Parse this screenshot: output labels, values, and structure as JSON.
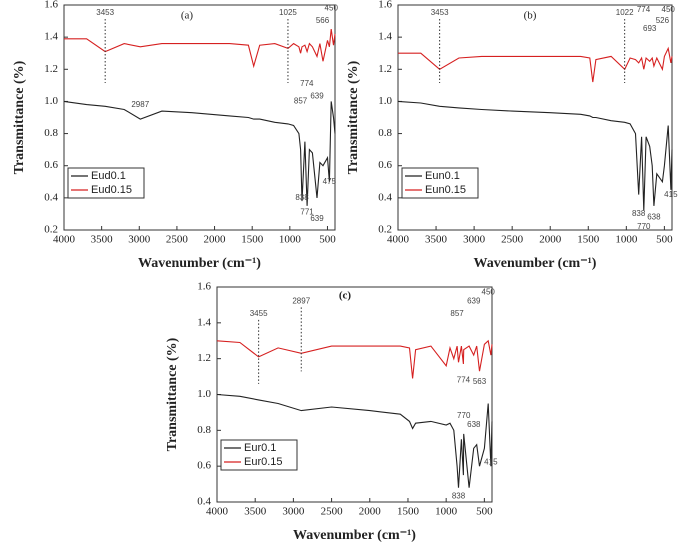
{
  "chart_data": [
    {
      "type": "line",
      "title": "(a)",
      "xlabel": "Wavenumber (cm⁻¹)",
      "ylabel": "Transmittance (%)",
      "xlim": [
        4000,
        400
      ],
      "xticks": [
        4000,
        3500,
        3000,
        2500,
        2000,
        1500,
        1000,
        500
      ],
      "ylim": [
        0.2,
        1.6
      ],
      "yticks": [
        0.2,
        0.4,
        0.6,
        0.8,
        {
          "value": 1.0,
          "label": "1.0"
        },
        1.2,
        1.4,
        1.6
      ],
      "legend": "lower left",
      "x": [
        4000,
        3700,
        3453,
        3200,
        2987,
        2700,
        2300,
        1800,
        1550,
        1480,
        1400,
        1200,
        1025,
        950,
        880,
        857,
        838,
        800,
        771,
        740,
        700,
        639,
        600,
        560,
        500,
        475,
        450,
        420,
        400
      ],
      "series": [
        {
          "name": "Eud0.1",
          "color": "#222222",
          "values": [
            1.0,
            0.98,
            0.97,
            0.95,
            0.89,
            0.94,
            0.93,
            0.91,
            0.9,
            0.89,
            0.89,
            0.87,
            0.86,
            0.85,
            0.8,
            0.7,
            0.38,
            0.75,
            0.35,
            0.7,
            0.68,
            0.4,
            0.62,
            0.6,
            0.65,
            0.5,
            1.0,
            0.9,
            0.8
          ]
        },
        {
          "name": "Eud0.15",
          "color": "#d62020",
          "values": [
            1.39,
            1.39,
            1.31,
            1.36,
            1.34,
            1.36,
            1.36,
            1.36,
            1.35,
            1.22,
            1.35,
            1.36,
            1.33,
            1.36,
            1.34,
            1.3,
            1.34,
            1.35,
            1.31,
            1.36,
            1.34,
            1.28,
            1.36,
            1.25,
            1.38,
            1.34,
            1.45,
            1.35,
            1.42
          ]
        }
      ],
      "annotations": [
        {
          "label": "3453",
          "x": 3453,
          "y": 1.55,
          "dotted": true
        },
        {
          "label": "2987",
          "x": 2987,
          "y": 0.98,
          "dotted": false
        },
        {
          "label": "1025",
          "x": 1025,
          "y": 1.55,
          "dotted": true
        },
        {
          "label": "857",
          "x": 857,
          "y": 1.0,
          "dotted": false
        },
        {
          "label": "774",
          "x": 774,
          "y": 1.11,
          "dotted": false
        },
        {
          "label": "639",
          "x": 639,
          "y": 1.03,
          "dotted": false
        },
        {
          "label": "566",
          "x": 566,
          "y": 1.5,
          "dotted": false
        },
        {
          "label": "450",
          "x": 450,
          "y": 1.58,
          "dotted": false
        },
        {
          "label": "838",
          "x": 838,
          "y": 0.4,
          "dotted": false
        },
        {
          "label": "771",
          "x": 771,
          "y": 0.31,
          "dotted": false
        },
        {
          "label": "639",
          "x": 639,
          "y": 0.27,
          "dotted": false
        },
        {
          "label": "475",
          "x": 475,
          "y": 0.5,
          "dotted": false
        }
      ]
    },
    {
      "type": "line",
      "title": "(b)",
      "xlabel": "Wavenumber (cm⁻¹)",
      "ylabel": "Transmittance (%)",
      "xlim": [
        4000,
        400
      ],
      "xticks": [
        4000,
        3500,
        3000,
        2500,
        2000,
        1500,
        1000,
        500
      ],
      "ylim": [
        0.2,
        1.6
      ],
      "yticks": [
        0.2,
        0.4,
        0.6,
        0.8,
        {
          "value": 1.0,
          "label": "1.0"
        },
        1.2,
        1.4,
        1.6
      ],
      "legend": "lower left",
      "x": [
        4000,
        3700,
        3453,
        3200,
        2900,
        2500,
        2000,
        1600,
        1480,
        1440,
        1400,
        1200,
        1022,
        950,
        880,
        838,
        800,
        770,
        740,
        693,
        660,
        638,
        600,
        526,
        500,
        450,
        415,
        400
      ],
      "series": [
        {
          "name": "Eun0.1",
          "color": "#222222",
          "values": [
            1.0,
            0.99,
            0.97,
            0.96,
            0.95,
            0.94,
            0.93,
            0.92,
            0.91,
            0.9,
            0.9,
            0.88,
            0.87,
            0.86,
            0.8,
            0.42,
            0.78,
            0.32,
            0.78,
            0.72,
            0.6,
            0.35,
            0.55,
            0.5,
            0.6,
            0.85,
            0.45,
            0.7
          ]
        },
        {
          "name": "Eun0.15",
          "color": "#d62020",
          "values": [
            1.3,
            1.3,
            1.2,
            1.27,
            1.28,
            1.28,
            1.28,
            1.28,
            1.27,
            1.12,
            1.26,
            1.28,
            1.2,
            1.27,
            1.26,
            1.24,
            1.27,
            1.2,
            1.27,
            1.25,
            1.27,
            1.22,
            1.27,
            1.2,
            1.28,
            1.33,
            1.24,
            1.28
          ]
        }
      ],
      "annotations": [
        {
          "label": "3453",
          "x": 3453,
          "y": 1.55,
          "dotted": true
        },
        {
          "label": "1022",
          "x": 1022,
          "y": 1.55,
          "dotted": true
        },
        {
          "label": "774",
          "x": 774,
          "y": 1.57,
          "dotted": false
        },
        {
          "label": "693",
          "x": 693,
          "y": 1.45,
          "dotted": false
        },
        {
          "label": "526",
          "x": 526,
          "y": 1.5,
          "dotted": false
        },
        {
          "label": "450",
          "x": 450,
          "y": 1.57,
          "dotted": false
        },
        {
          "label": "838",
          "x": 838,
          "y": 0.3,
          "dotted": false
        },
        {
          "label": "770",
          "x": 770,
          "y": 0.22,
          "dotted": false
        },
        {
          "label": "638",
          "x": 638,
          "y": 0.28,
          "dotted": false
        },
        {
          "label": "415",
          "x": 415,
          "y": 0.42,
          "dotted": false
        }
      ]
    },
    {
      "type": "line",
      "title": "(c)",
      "xlabel": "Wavenumber (cm⁻¹)",
      "ylabel": "Transmittance (%)",
      "xlim": [
        4000,
        400
      ],
      "xticks": [
        4000,
        3500,
        3000,
        2500,
        2000,
        1500,
        1000,
        500
      ],
      "ylim": [
        0.4,
        1.6
      ],
      "yticks": [
        0.4,
        0.6,
        0.8,
        {
          "value": 1.0,
          "label": "1.0"
        },
        1.2,
        1.4,
        1.6
      ],
      "legend": "lower left",
      "x": [
        4000,
        3700,
        3455,
        3200,
        2897,
        2500,
        2000,
        1600,
        1480,
        1440,
        1400,
        1200,
        1000,
        950,
        900,
        857,
        838,
        800,
        774,
        770,
        700,
        639,
        600,
        563,
        500,
        450,
        415,
        400
      ],
      "series": [
        {
          "name": "Eur0.1",
          "color": "#222222",
          "values": [
            1.0,
            0.99,
            0.97,
            0.95,
            0.91,
            0.93,
            0.91,
            0.89,
            0.85,
            0.81,
            0.84,
            0.85,
            0.83,
            0.84,
            0.8,
            0.6,
            0.48,
            0.75,
            0.55,
            0.78,
            0.48,
            0.7,
            0.72,
            0.6,
            0.7,
            0.95,
            0.6,
            0.85
          ]
        },
        {
          "name": "Eur0.15",
          "color": "#d62020",
          "values": [
            1.3,
            1.29,
            1.21,
            1.26,
            1.23,
            1.27,
            1.27,
            1.27,
            1.26,
            1.09,
            1.25,
            1.27,
            1.16,
            1.26,
            1.2,
            1.27,
            1.18,
            1.27,
            1.17,
            1.25,
            1.27,
            1.22,
            1.27,
            1.13,
            1.28,
            1.3,
            1.22,
            1.28
          ]
        }
      ],
      "annotations": [
        {
          "label": "3455",
          "x": 3455,
          "y": 1.45,
          "dotted": true
        },
        {
          "label": "2897",
          "x": 2897,
          "y": 1.52,
          "dotted": true
        },
        {
          "label": "857",
          "x": 857,
          "y": 1.45,
          "dotted": false
        },
        {
          "label": "639",
          "x": 639,
          "y": 1.52,
          "dotted": false
        },
        {
          "label": "450",
          "x": 450,
          "y": 1.57,
          "dotted": false
        },
        {
          "label": "774",
          "x": 774,
          "y": 1.08,
          "dotted": false
        },
        {
          "label": "563",
          "x": 563,
          "y": 1.07,
          "dotted": false
        },
        {
          "label": "770",
          "x": 770,
          "y": 0.88,
          "dotted": false
        },
        {
          "label": "638",
          "x": 638,
          "y": 0.83,
          "dotted": false
        },
        {
          "label": "838",
          "x": 838,
          "y": 0.43,
          "dotted": false
        },
        {
          "label": "415",
          "x": 415,
          "y": 0.62,
          "dotted": false
        }
      ]
    }
  ]
}
